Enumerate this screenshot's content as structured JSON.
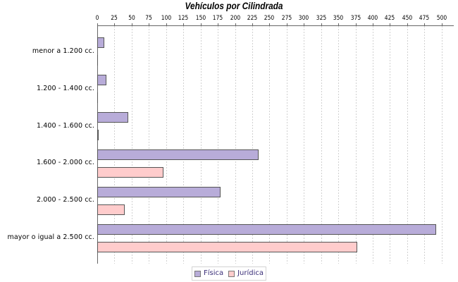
{
  "chart_data": {
    "type": "bar",
    "orientation": "horizontal",
    "title": "Vehículos por Cilindrada",
    "categories": [
      "menor a 1.200 cc.",
      "1.200 - 1.400 cc.",
      "1.400 - 1.600 cc.",
      "1.600 - 2.000 cc.",
      "2.000 - 2.500 cc.",
      "mayor o igual a 2.500 cc."
    ],
    "series": [
      {
        "name": "Física",
        "color": "#b8acd9",
        "values": [
          10,
          13,
          45,
          234,
          179,
          492
        ]
      },
      {
        "name": "Jurídica",
        "color": "#ffcccc",
        "values": [
          0,
          1,
          2,
          96,
          40,
          377
        ]
      }
    ],
    "xlabel": "",
    "ylabel": "",
    "axis": {
      "min": 0,
      "max": 500,
      "tick_step": 25,
      "upper_margin": 0.05
    },
    "grid": true,
    "gridline_color": "#d0d0d0",
    "bar_outline_color": "#555555",
    "axis_color": "#666666",
    "legend_position": "bottom",
    "legend_text_color": "#3a2e78"
  }
}
